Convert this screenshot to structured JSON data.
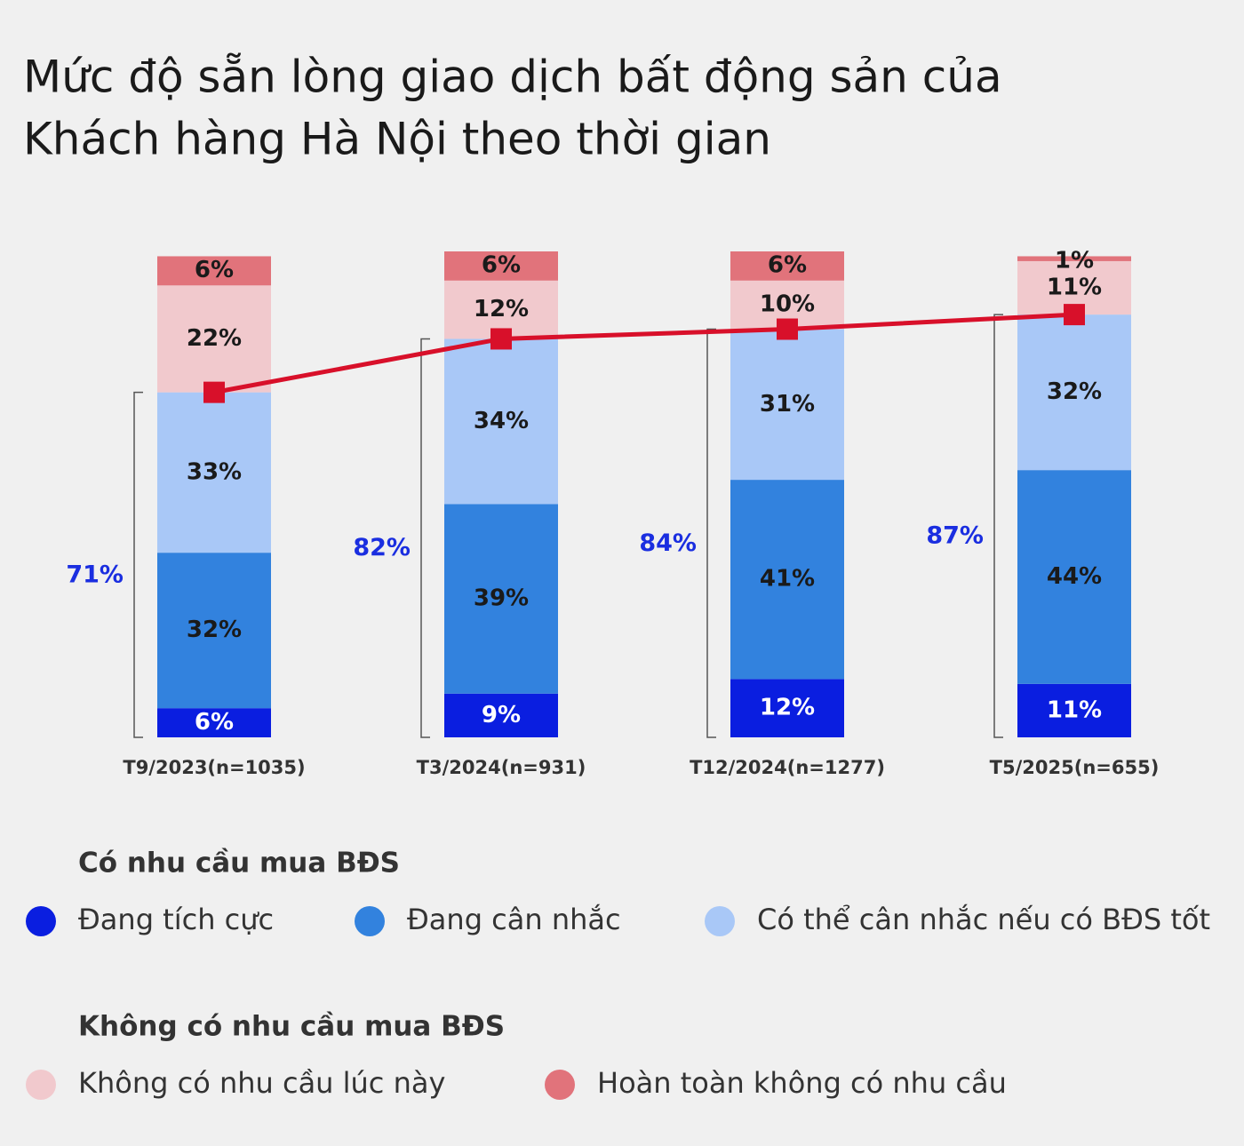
{
  "chart_data": {
    "type": "bar",
    "stacked": true,
    "title": [
      "Mức độ sẵn lòng giao dịch bất động sản của",
      "Khách hàng Hà Nội theo thời gian"
    ],
    "categories": [
      "T9/2023(n=1035)",
      "T3/2024(n=931)",
      "T12/2024(n=1277)",
      "T5/2025(n=655)"
    ],
    "ylim": [
      0,
      100
    ],
    "series": [
      {
        "name": "Đang tích cực",
        "color": "#0a1ee0",
        "label_color": "#ffffff",
        "values": [
          6,
          9,
          12,
          11
        ],
        "value_labels": [
          "6%",
          "9%",
          "12%",
          "11%"
        ]
      },
      {
        "name": "Đang cân nhắc",
        "color": "#3282de",
        "label_color": "#1a1a1a",
        "values": [
          32,
          39,
          41,
          44
        ],
        "value_labels": [
          "32%",
          "39%",
          "41%",
          "44%"
        ]
      },
      {
        "name": "Có thể cân nhắc nếu có BĐS tốt",
        "color": "#a9c8f7",
        "label_color": "#1a1a1a",
        "values": [
          33,
          34,
          31,
          32
        ],
        "value_labels": [
          "33%",
          "34%",
          "31%",
          "32%"
        ]
      },
      {
        "name": "Không có nhu cầu lúc này",
        "color": "#f1c9cd",
        "label_color": "#1a1a1a",
        "values": [
          22,
          12,
          10,
          11
        ],
        "value_labels": [
          "22%",
          "12%",
          "10%",
          "11%"
        ]
      },
      {
        "name": "Hoàn toàn không có nhu cầu",
        "color": "#e1737b",
        "label_color": "#1a1a1a",
        "values": [
          6,
          6,
          6,
          1
        ],
        "value_labels": [
          "6%",
          "6%",
          "6%",
          "1%"
        ]
      }
    ],
    "totals": {
      "color": "#d8102a",
      "values": [
        71,
        82,
        84,
        87
      ],
      "value_labels": [
        "71%",
        "82%",
        "84%",
        "87%"
      ]
    },
    "legend_groups": [
      {
        "title": "Có nhu cầu mua BĐS",
        "series": [
          0,
          1,
          2
        ]
      },
      {
        "title": "Không có nhu cầu mua BĐS",
        "series": [
          3,
          4
        ]
      }
    ]
  }
}
